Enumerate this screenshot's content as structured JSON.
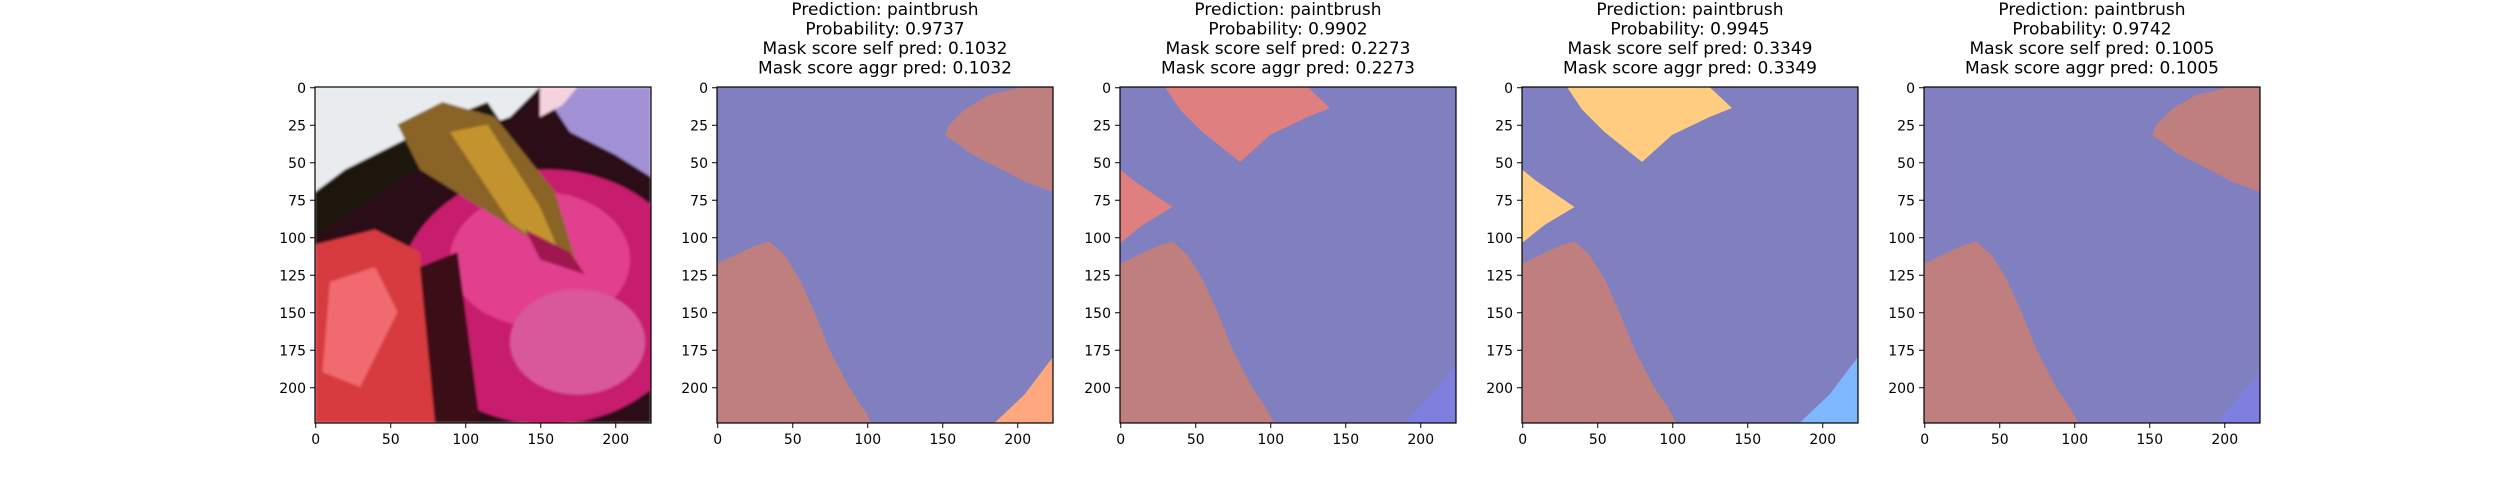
{
  "figure": {
    "background": "#ffffff",
    "colors": {
      "purple": "#8080c0",
      "brown": "#c07f7f",
      "salmon": "#e07f7f",
      "gold": "#ffcc80",
      "peach": "#ffa880",
      "violet": "#7f7fe0",
      "skyblue": "#80b8ff",
      "spine": "#000000"
    }
  },
  "chart_data": [
    {
      "type": "image",
      "panel": "original-photo",
      "title_lines": [],
      "xlim": [
        0,
        224
      ],
      "ylim": [
        224,
        0
      ],
      "x_ticks": [
        0,
        50,
        100,
        150,
        200
      ],
      "y_ticks": [
        0,
        25,
        50,
        75,
        100,
        125,
        150,
        175,
        200
      ],
      "image": "paint-brush-in-magenta-watercolor-pan"
    },
    {
      "type": "heatmap",
      "panel": "mask-1",
      "title_lines": [
        "Prediction: paintbrush",
        "Probability: 0.9737",
        "Mask score self pred: 0.1032",
        "Mask score aggr pred: 0.1032"
      ],
      "prediction": "paintbrush",
      "probability": 0.9737,
      "mask_score_self_pred": 0.1032,
      "mask_score_aggr_pred": 0.1032,
      "xlim": [
        0,
        224
      ],
      "ylim": [
        224,
        0
      ],
      "x_ticks": [
        0,
        50,
        100,
        150,
        200
      ],
      "y_ticks": [
        0,
        25,
        50,
        75,
        100,
        125,
        150,
        175,
        200
      ],
      "background_color": "purple",
      "regions": [
        {
          "name": "upper-right-segment",
          "color": "brown",
          "points": [
            [
              224,
              0
            ],
            [
              205,
              0
            ],
            [
              182,
              5
            ],
            [
              165,
              15
            ],
            [
              155,
              25
            ],
            [
              152,
              32
            ],
            [
              170,
              45
            ],
            [
              190,
              55
            ],
            [
              205,
              63
            ],
            [
              224,
              70
            ]
          ]
        },
        {
          "name": "lower-left-segment",
          "color": "brown",
          "points": [
            [
              0,
              118
            ],
            [
              10,
              113
            ],
            [
              25,
              106
            ],
            [
              35,
              103
            ],
            [
              45,
              112
            ],
            [
              55,
              128
            ],
            [
              65,
              150
            ],
            [
              75,
              175
            ],
            [
              88,
              200
            ],
            [
              98,
              215
            ],
            [
              103,
              224
            ],
            [
              0,
              224
            ]
          ]
        },
        {
          "name": "bottom-right-corner-segment",
          "color": "peach",
          "points": [
            [
              224,
              180
            ],
            [
              224,
              224
            ],
            [
              185,
              224
            ],
            [
              205,
              205
            ]
          ]
        }
      ]
    },
    {
      "type": "heatmap",
      "panel": "mask-2",
      "title_lines": [
        "Prediction: paintbrush",
        "Probability: 0.9902",
        "Mask score self pred: 0.2273",
        "Mask score aggr pred: 0.2273"
      ],
      "prediction": "paintbrush",
      "probability": 0.9902,
      "mask_score_self_pred": 0.2273,
      "mask_score_aggr_pred": 0.2273,
      "xlim": [
        0,
        224
      ],
      "ylim": [
        224,
        0
      ],
      "x_ticks": [
        0,
        50,
        100,
        150,
        200
      ],
      "y_ticks": [
        0,
        25,
        50,
        75,
        100,
        125,
        150,
        175,
        200
      ],
      "background_color": "purple",
      "regions": [
        {
          "name": "top-segment",
          "color": "salmon",
          "points": [
            [
              30,
              0
            ],
            [
              125,
              0
            ],
            [
              140,
              14
            ],
            [
              125,
              20
            ],
            [
              100,
              32
            ],
            [
              80,
              50
            ],
            [
              55,
              30
            ],
            [
              40,
              15
            ]
          ]
        },
        {
          "name": "left-wedge-segment",
          "color": "salmon",
          "points": [
            [
              0,
              55
            ],
            [
              10,
              63
            ],
            [
              35,
              80
            ],
            [
              15,
              92
            ],
            [
              0,
              104
            ]
          ]
        },
        {
          "name": "lower-left-segment",
          "color": "brown",
          "points": [
            [
              0,
              118
            ],
            [
              10,
              113
            ],
            [
              25,
              106
            ],
            [
              35,
              103
            ],
            [
              45,
              112
            ],
            [
              55,
              128
            ],
            [
              65,
              150
            ],
            [
              75,
              175
            ],
            [
              88,
              200
            ],
            [
              98,
              215
            ],
            [
              103,
              224
            ],
            [
              0,
              224
            ]
          ]
        },
        {
          "name": "bottom-right-corner-segment",
          "color": "violet",
          "points": [
            [
              224,
              185
            ],
            [
              224,
              224
            ],
            [
              190,
              224
            ],
            [
              208,
              205
            ]
          ]
        }
      ]
    },
    {
      "type": "heatmap",
      "panel": "mask-3",
      "title_lines": [
        "Prediction: paintbrush",
        "Probability: 0.9945",
        "Mask score self pred: 0.3349",
        "Mask score aggr pred: 0.3349"
      ],
      "prediction": "paintbrush",
      "probability": 0.9945,
      "mask_score_self_pred": 0.3349,
      "mask_score_aggr_pred": 0.3349,
      "xlim": [
        0,
        224
      ],
      "ylim": [
        224,
        0
      ],
      "x_ticks": [
        0,
        50,
        100,
        150,
        200
      ],
      "y_ticks": [
        0,
        25,
        50,
        75,
        100,
        125,
        150,
        175,
        200
      ],
      "background_color": "purple",
      "regions": [
        {
          "name": "top-segment",
          "color": "gold",
          "points": [
            [
              30,
              0
            ],
            [
              125,
              0
            ],
            [
              140,
              14
            ],
            [
              125,
              20
            ],
            [
              100,
              32
            ],
            [
              80,
              50
            ],
            [
              55,
              30
            ],
            [
              40,
              15
            ]
          ]
        },
        {
          "name": "left-wedge-segment",
          "color": "gold",
          "points": [
            [
              0,
              55
            ],
            [
              10,
              63
            ],
            [
              35,
              80
            ],
            [
              15,
              92
            ],
            [
              0,
              104
            ]
          ]
        },
        {
          "name": "lower-left-segment",
          "color": "brown",
          "points": [
            [
              0,
              118
            ],
            [
              10,
              113
            ],
            [
              25,
              106
            ],
            [
              35,
              103
            ],
            [
              45,
              112
            ],
            [
              55,
              128
            ],
            [
              65,
              150
            ],
            [
              75,
              175
            ],
            [
              88,
              200
            ],
            [
              98,
              215
            ],
            [
              103,
              224
            ],
            [
              0,
              224
            ]
          ]
        },
        {
          "name": "bottom-right-corner-segment",
          "color": "skyblue",
          "points": [
            [
              224,
              180
            ],
            [
              224,
              224
            ],
            [
              185,
              224
            ],
            [
              205,
              205
            ]
          ]
        }
      ]
    },
    {
      "type": "heatmap",
      "panel": "mask-4",
      "title_lines": [
        "Prediction: paintbrush",
        "Probability: 0.9742",
        "Mask score self pred: 0.1005",
        "Mask score aggr pred: 0.1005"
      ],
      "prediction": "paintbrush",
      "probability": 0.9742,
      "mask_score_self_pred": 0.1005,
      "mask_score_aggr_pred": 0.1005,
      "xlim": [
        0,
        224
      ],
      "ylim": [
        224,
        0
      ],
      "x_ticks": [
        0,
        50,
        100,
        150,
        200
      ],
      "y_ticks": [
        0,
        25,
        50,
        75,
        100,
        125,
        150,
        175,
        200
      ],
      "background_color": "purple",
      "regions": [
        {
          "name": "upper-right-segment",
          "color": "brown",
          "points": [
            [
              224,
              0
            ],
            [
              205,
              0
            ],
            [
              182,
              5
            ],
            [
              165,
              15
            ],
            [
              155,
              25
            ],
            [
              152,
              32
            ],
            [
              170,
              45
            ],
            [
              190,
              55
            ],
            [
              205,
              63
            ],
            [
              224,
              70
            ]
          ]
        },
        {
          "name": "lower-left-segment",
          "color": "brown",
          "points": [
            [
              0,
              118
            ],
            [
              10,
              113
            ],
            [
              25,
              106
            ],
            [
              35,
              103
            ],
            [
              45,
              112
            ],
            [
              55,
              128
            ],
            [
              65,
              150
            ],
            [
              75,
              175
            ],
            [
              88,
              200
            ],
            [
              98,
              215
            ],
            [
              103,
              224
            ],
            [
              0,
              224
            ]
          ]
        },
        {
          "name": "bottom-right-corner-segment",
          "color": "violet",
          "points": [
            [
              224,
              190
            ],
            [
              224,
              224
            ],
            [
              195,
              224
            ]
          ]
        }
      ]
    }
  ]
}
